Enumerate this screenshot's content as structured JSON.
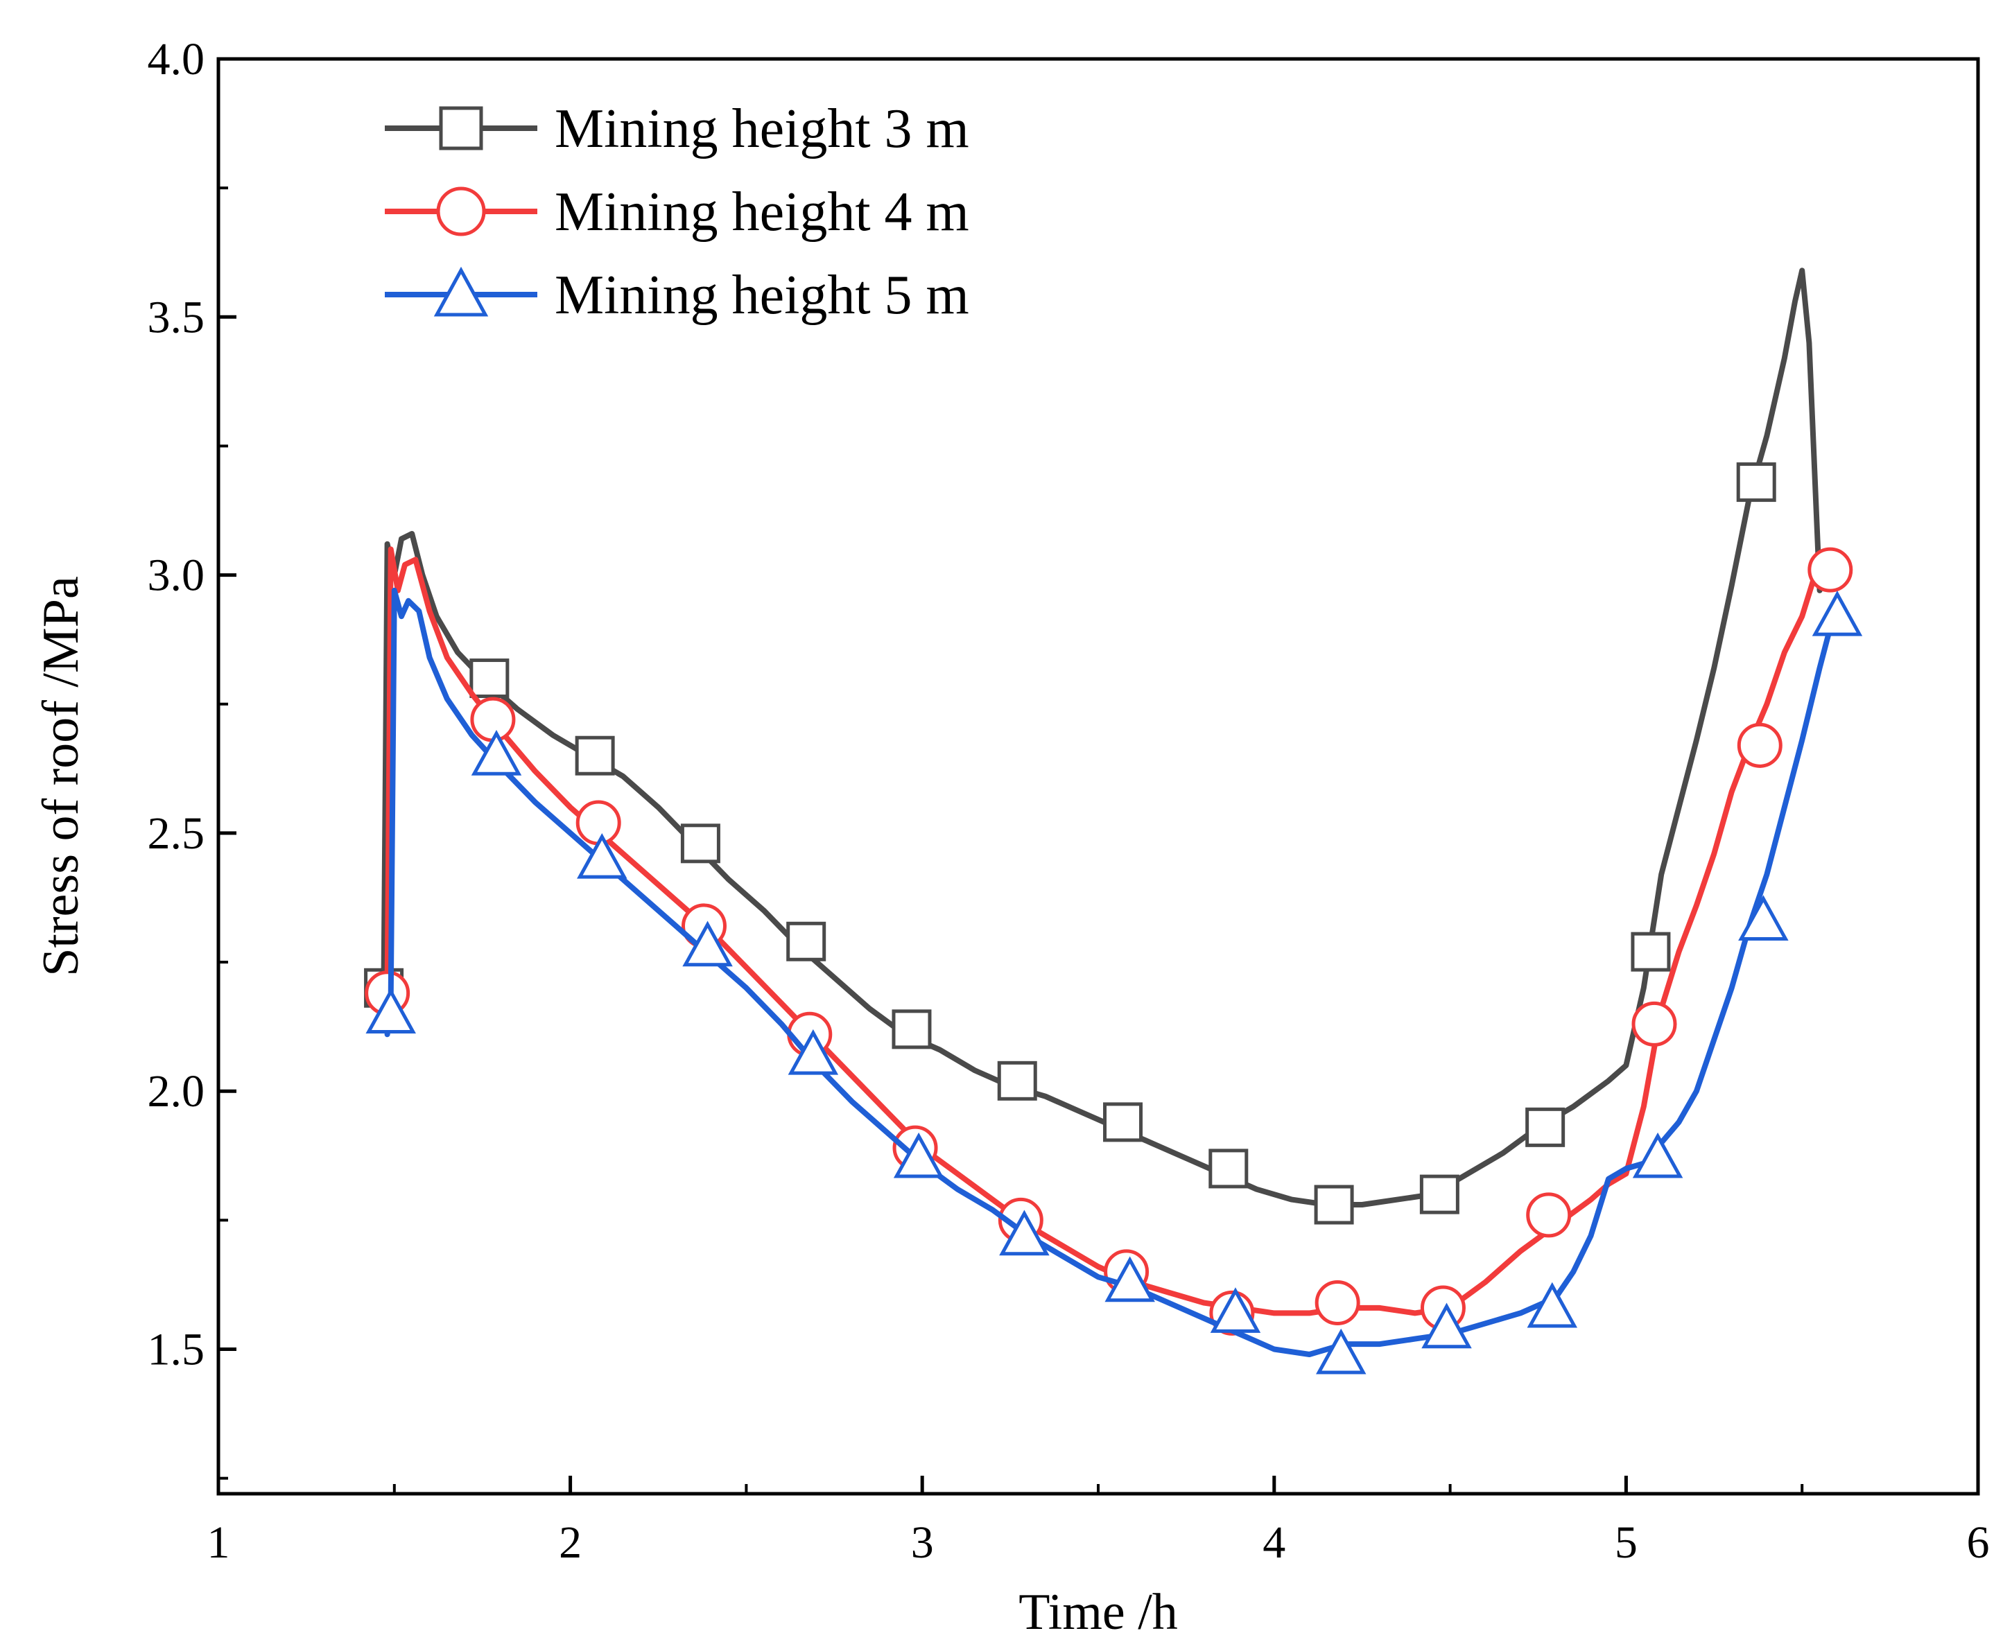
{
  "chart_data": {
    "type": "line",
    "title": "",
    "xlabel": "Time /h",
    "ylabel": "Stress of roof /MPa",
    "xlim": [
      1,
      6
    ],
    "ylim": [
      1.22,
      4.0
    ],
    "xticks": [
      "1",
      "2",
      "3",
      "4",
      "5",
      "6"
    ],
    "yticks": [
      "1.5",
      "2.0",
      "2.5",
      "3.0",
      "3.5",
      "4.0"
    ],
    "grid": false,
    "legend_position": "top-left",
    "series": [
      {
        "name": "Mining height 3 m",
        "color": "#4a4a4a",
        "marker": "square",
        "x": [
          1.46,
          1.47,
          1.48,
          1.5,
          1.52,
          1.55,
          1.58,
          1.62,
          1.68,
          1.75,
          1.85,
          1.95,
          2.05,
          2.15,
          2.25,
          2.35,
          2.45,
          2.55,
          2.65,
          2.75,
          2.85,
          2.95,
          3.05,
          3.15,
          3.25,
          3.35,
          3.45,
          3.55,
          3.65,
          3.75,
          3.85,
          3.95,
          4.05,
          4.15,
          4.25,
          4.35,
          4.45,
          4.55,
          4.65,
          4.75,
          4.85,
          4.95,
          5.0,
          5.05,
          5.1,
          5.15,
          5.2,
          5.25,
          5.3,
          5.35,
          5.4,
          5.45,
          5.48,
          5.5,
          5.52,
          5.55
        ],
        "y": [
          2.2,
          2.22,
          3.06,
          3.0,
          3.07,
          3.08,
          3.0,
          2.92,
          2.85,
          2.8,
          2.74,
          2.69,
          2.65,
          2.61,
          2.55,
          2.48,
          2.41,
          2.35,
          2.28,
          2.22,
          2.16,
          2.11,
          2.08,
          2.04,
          2.01,
          1.99,
          1.96,
          1.93,
          1.9,
          1.87,
          1.84,
          1.81,
          1.79,
          1.78,
          1.78,
          1.79,
          1.8,
          1.84,
          1.88,
          1.93,
          1.97,
          2.02,
          2.05,
          2.2,
          2.42,
          2.55,
          2.68,
          2.82,
          2.98,
          3.15,
          3.27,
          3.42,
          3.53,
          3.59,
          3.45,
          2.97
        ],
        "markers_x": [
          1.47,
          1.77,
          2.07,
          2.37,
          2.67,
          2.97,
          3.27,
          3.57,
          3.87,
          4.17,
          4.47,
          4.77,
          5.07,
          5.37
        ],
        "markers_y": [
          2.2,
          2.8,
          2.65,
          2.48,
          2.29,
          2.12,
          2.02,
          1.94,
          1.85,
          1.78,
          1.8,
          1.93,
          2.27,
          3.18
        ]
      },
      {
        "name": "Mining height 4 m",
        "color": "#f23b3b",
        "marker": "circle",
        "x": [
          1.47,
          1.48,
          1.49,
          1.51,
          1.53,
          1.56,
          1.6,
          1.65,
          1.72,
          1.8,
          1.9,
          2.0,
          2.1,
          2.2,
          2.3,
          2.4,
          2.5,
          2.6,
          2.7,
          2.8,
          2.9,
          3.0,
          3.1,
          3.2,
          3.3,
          3.4,
          3.5,
          3.6,
          3.7,
          3.8,
          3.9,
          4.0,
          4.1,
          4.2,
          4.3,
          4.4,
          4.5,
          4.6,
          4.7,
          4.8,
          4.9,
          4.95,
          5.0,
          5.05,
          5.1,
          5.15,
          5.2,
          5.25,
          5.3,
          5.35,
          5.4,
          5.45,
          5.5,
          5.55,
          5.58
        ],
        "y": [
          2.18,
          2.2,
          3.05,
          2.97,
          3.02,
          3.03,
          2.93,
          2.84,
          2.77,
          2.7,
          2.62,
          2.55,
          2.49,
          2.43,
          2.37,
          2.31,
          2.24,
          2.17,
          2.1,
          2.03,
          1.96,
          1.89,
          1.84,
          1.79,
          1.74,
          1.7,
          1.66,
          1.63,
          1.61,
          1.59,
          1.58,
          1.57,
          1.57,
          1.58,
          1.58,
          1.57,
          1.58,
          1.63,
          1.69,
          1.74,
          1.79,
          1.82,
          1.84,
          1.97,
          2.16,
          2.27,
          2.36,
          2.46,
          2.58,
          2.67,
          2.75,
          2.85,
          2.92,
          3.03,
          2.99
        ],
        "markers_x": [
          1.48,
          1.78,
          2.08,
          2.38,
          2.68,
          2.98,
          3.28,
          3.58,
          3.88,
          4.18,
          4.48,
          4.78,
          5.08,
          5.38,
          5.58
        ],
        "markers_y": [
          2.19,
          2.72,
          2.52,
          2.32,
          2.11,
          1.89,
          1.75,
          1.65,
          1.57,
          1.59,
          1.58,
          1.76,
          2.13,
          2.67,
          3.01
        ]
      },
      {
        "name": "Mining height 5 m",
        "color": "#1f5fd6",
        "marker": "triangle",
        "x": [
          1.48,
          1.49,
          1.5,
          1.52,
          1.54,
          1.57,
          1.6,
          1.65,
          1.72,
          1.8,
          1.9,
          2.0,
          2.1,
          2.2,
          2.3,
          2.4,
          2.5,
          2.6,
          2.7,
          2.8,
          2.9,
          3.0,
          3.1,
          3.2,
          3.3,
          3.4,
          3.5,
          3.6,
          3.7,
          3.8,
          3.9,
          4.0,
          4.1,
          4.2,
          4.3,
          4.4,
          4.5,
          4.6,
          4.7,
          4.8,
          4.85,
          4.9,
          4.95,
          5.0,
          5.05,
          5.1,
          5.15,
          5.2,
          5.25,
          5.3,
          5.35,
          5.4,
          5.45,
          5.5,
          5.55,
          5.6
        ],
        "y": [
          2.11,
          2.18,
          2.97,
          2.92,
          2.95,
          2.93,
          2.84,
          2.76,
          2.69,
          2.63,
          2.56,
          2.5,
          2.44,
          2.38,
          2.32,
          2.26,
          2.2,
          2.13,
          2.05,
          1.98,
          1.92,
          1.86,
          1.81,
          1.77,
          1.72,
          1.68,
          1.64,
          1.62,
          1.59,
          1.56,
          1.53,
          1.5,
          1.49,
          1.51,
          1.51,
          1.52,
          1.53,
          1.55,
          1.57,
          1.6,
          1.65,
          1.72,
          1.83,
          1.85,
          1.86,
          1.9,
          1.94,
          2.0,
          2.1,
          2.2,
          2.32,
          2.42,
          2.55,
          2.68,
          2.82,
          2.95
        ],
        "markers_x": [
          1.49,
          1.79,
          2.09,
          2.39,
          2.69,
          2.99,
          3.29,
          3.59,
          3.89,
          4.19,
          4.49,
          4.79,
          5.09,
          5.39,
          5.6
        ],
        "markers_y": [
          2.15,
          2.65,
          2.45,
          2.28,
          2.07,
          1.87,
          1.72,
          1.63,
          1.57,
          1.49,
          1.54,
          1.58,
          1.87,
          2.33,
          2.92
        ]
      }
    ]
  }
}
